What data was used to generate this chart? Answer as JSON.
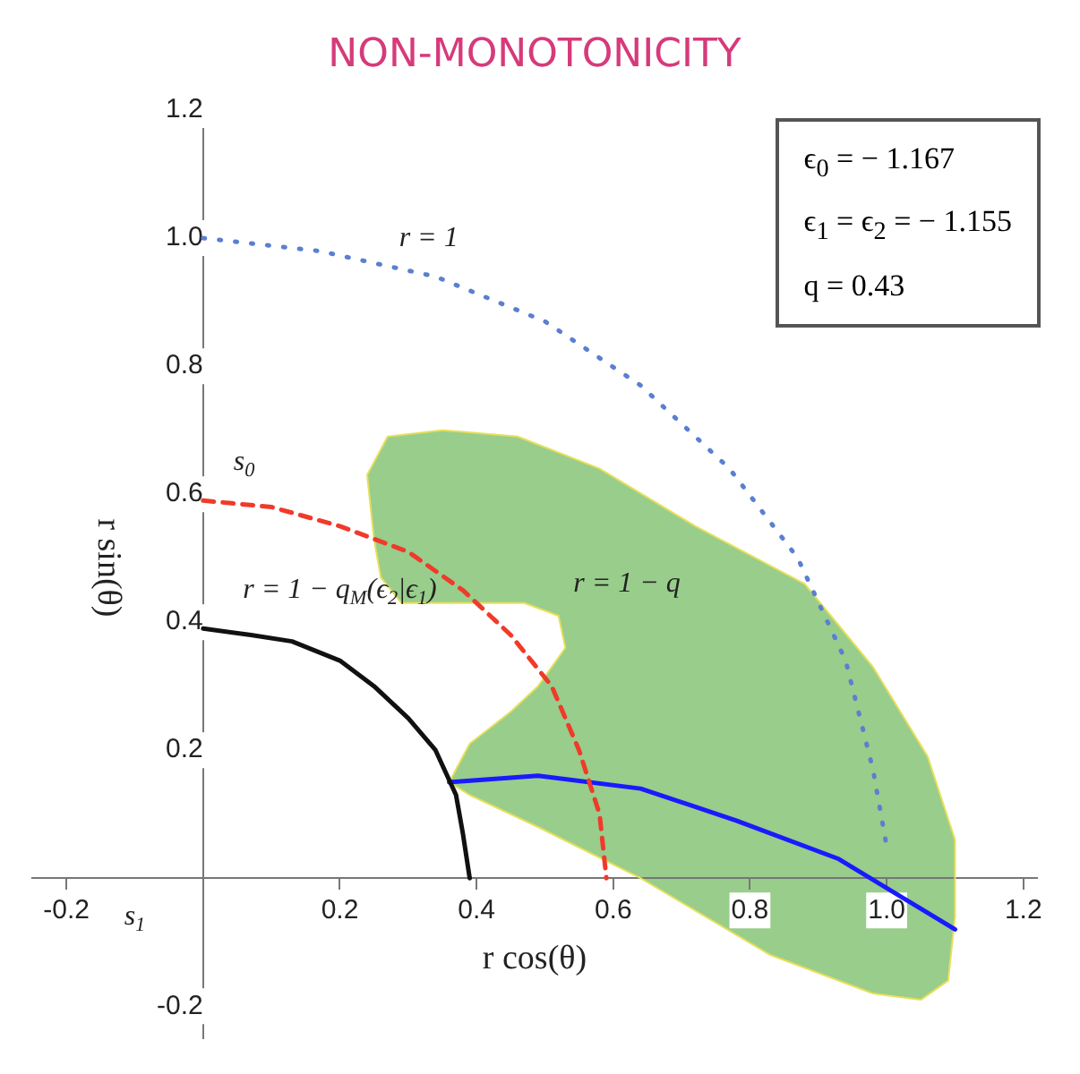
{
  "chart_data": {
    "type": "line",
    "title": "NON-MONOTONICITY",
    "xlabel": "r cos(θ)",
    "ylabel": "r sin(θ)",
    "xlim": [
      -0.25,
      1.22
    ],
    "ylim": [
      -0.25,
      1.22
    ],
    "xticks": [
      -0.2,
      0.2,
      0.4,
      0.6,
      0.8,
      {
        "value": 1,
        "label": "1.0"
      },
      1.2
    ],
    "yticks": [
      -0.2,
      0.2,
      0.4,
      0.6,
      0.8,
      {
        "value": 1,
        "label": "1.0"
      },
      1.2
    ],
    "grid": false,
    "legend": false,
    "marker": "none",
    "series": [
      {
        "color": "#5b7fd0",
        "line_style": "dotted",
        "x": [
          0,
          0.17,
          0.34,
          0.5,
          0.64,
          0.77,
          0.87,
          0.94,
          0.98,
          1
        ],
        "values": [
          1,
          0.98,
          0.94,
          0.87,
          0.77,
          0.64,
          0.5,
          0.34,
          0.17,
          0.05
        ]
      },
      {
        "color": "#f03a2a",
        "line_style": "dashed",
        "x": [
          0,
          0.1,
          0.2,
          0.3,
          0.38,
          0.45,
          0.51,
          0.55,
          0.58,
          0.59
        ],
        "values": [
          0.59,
          0.58,
          0.55,
          0.51,
          0.45,
          0.38,
          0.3,
          0.2,
          0.1,
          0
        ]
      },
      {
        "color": "#111111",
        "line_style": "solid",
        "x": [
          0,
          0.07,
          0.13,
          0.2,
          0.25,
          0.3,
          0.34,
          0.37,
          0.38,
          0.39
        ],
        "values": [
          0.39,
          0.38,
          0.37,
          0.34,
          0.3,
          0.25,
          0.2,
          0.13,
          0.07,
          0
        ]
      },
      {
        "type": "area",
        "color": "#e6df5a",
        "line_style": "solid",
        "x": [
          0.36,
          0.39,
          0.45,
          0.49,
          0.53,
          0.52,
          0.47,
          0.29,
          0.26,
          0.25,
          0.24,
          0.27,
          0.35,
          0.46,
          0.58,
          0.72,
          0.88,
          0.98,
          1.06,
          1.1,
          1.1,
          1.09,
          1.05,
          0.98,
          0.83,
          0.64,
          0.49,
          0.39,
          0.36
        ],
        "values": [
          0.15,
          0.21,
          0.26,
          0.3,
          0.36,
          0.41,
          0.43,
          0.43,
          0.47,
          0.53,
          0.63,
          0.69,
          0.7,
          0.69,
          0.64,
          0.55,
          0.46,
          0.33,
          0.19,
          0.06,
          -0.06,
          -0.16,
          -0.19,
          -0.18,
          -0.12,
          0,
          0.08,
          0.13,
          0.15
        ]
      },
      {
        "color": "#1a1aff",
        "line_style": "solid",
        "x": [
          0.36,
          0.49,
          0.64,
          0.78,
          0.93,
          1.1
        ],
        "values": [
          0.15,
          0.16,
          0.14,
          0.09,
          0.03,
          -0.08
        ]
      }
    ],
    "annotations": [
      "ϵ$_{0}$ = − 1.167",
      "ϵ$_{1}$ = ϵ$_{2}$ = − 1.155",
      "q = 0.43",
      "r = 1",
      "s$_{0}$",
      "s$_{1}$",
      "r = 1 − q$_{M}$(ϵ$_{2}$|ϵ$_{1}$)",
      "r = 1 − q"
    ]
  }
}
